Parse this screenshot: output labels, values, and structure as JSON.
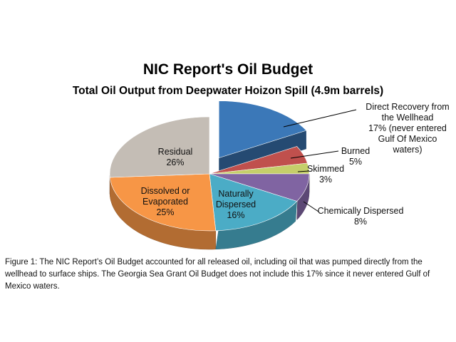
{
  "chart_data": {
    "type": "pie",
    "title": "NIC Report's Oil Budget",
    "subtitle": "Total Oil Output from Deepwater Hoizon Spill (4.9m barrels)",
    "slices": [
      {
        "name": "Direct Recovery from the Wellhead",
        "value": 17,
        "label_lines": [
          "Direct Recovery from",
          "the Wellhead",
          "17% (never entered",
          "Gulf Of Mexico",
          "waters)"
        ],
        "color": "#3b78b8"
      },
      {
        "name": "Burned",
        "value": 5,
        "label_lines": [
          "Burned",
          "5%"
        ],
        "color": "#c0504d"
      },
      {
        "name": "Skimmed",
        "value": 3,
        "label_lines": [
          "Skimmed",
          "3%"
        ],
        "color": "#c5cf6a"
      },
      {
        "name": "Chemically Dispersed",
        "value": 8,
        "label_lines": [
          "Chemically Dispersed",
          "8%"
        ],
        "color": "#8064a2"
      },
      {
        "name": "Naturally Dispersed",
        "value": 16,
        "label_lines": [
          "Naturally",
          "Dispersed",
          "16%"
        ],
        "color": "#4bacc6"
      },
      {
        "name": "Dissolved or Evaporated",
        "value": 25,
        "label_lines": [
          "Dissolved or",
          "Evaporated",
          "25%"
        ],
        "color": "#f79646"
      },
      {
        "name": "Residual",
        "value": 26,
        "label_lines": [
          "Residual",
          "26%"
        ],
        "color": "#c4bdb5"
      }
    ],
    "exploded": "Direct Recovery from the Wellhead",
    "legend": "none"
  },
  "caption": "Figure 1: The NIC Report’s Oil Budget accounted for all released oil, including oil that was pumped directly from the wellhead to surface ships. The Georgia Sea Grant Oil Budget does not include this 17% since it never entered Gulf of Mexico waters."
}
